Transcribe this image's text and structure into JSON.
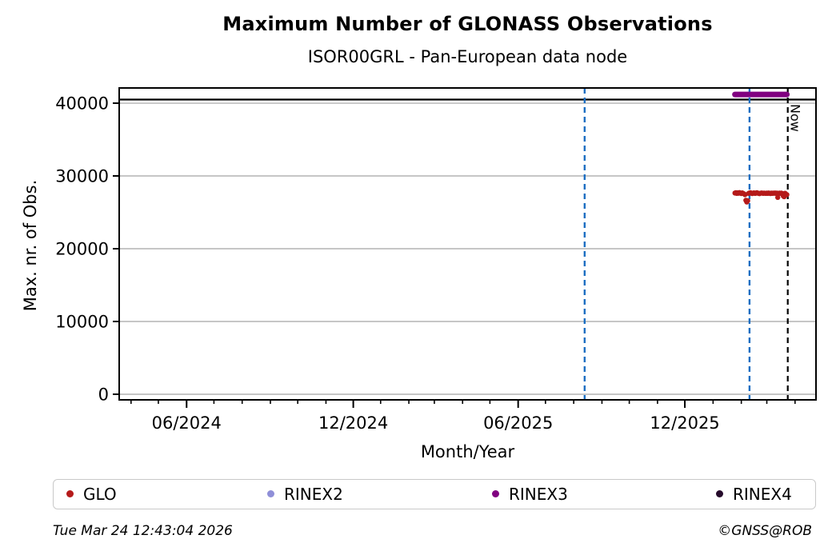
{
  "header": {
    "title": "Maximum Number of GLONASS Observations",
    "subtitle": "ISOR00GRL - Pan-European data node"
  },
  "footer": {
    "timestamp": "Tue Mar 24 12:43:04 2026",
    "credit": "©GNSS@ROB"
  },
  "chart_data": {
    "type": "scatter",
    "title": "Maximum Number of GLONASS Observations",
    "subtitle": "ISOR00GRL - Pan-European data node",
    "xlabel": "Month/Year",
    "ylabel": "Max. nr. of Obs.",
    "x_range": [
      "2024-03-19",
      "2026-04-24"
    ],
    "y_range": [
      -770,
      42090
    ],
    "y_ticks": [
      0,
      10000,
      20000,
      30000,
      40000
    ],
    "y_tick_labels": [
      "0",
      "10000",
      "20000",
      "30000",
      "40000"
    ],
    "x_major_ticks": [
      {
        "date": "2024-06-01",
        "label": "06/2024"
      },
      {
        "date": "2024-12-01",
        "label": "12/2024"
      },
      {
        "date": "2025-06-01",
        "label": "06/2025"
      },
      {
        "date": "2025-12-01",
        "label": "12/2025"
      }
    ],
    "x_minor_ticks_monthly": {
      "start": "2024-04-01",
      "end": "2026-04-01"
    },
    "grid": "horizontal-only",
    "grid_color": "#b4b4b4",
    "reference_line": {
      "value": 40500,
      "color": "#000000",
      "style": "solid"
    },
    "event_lines": [
      {
        "date": "2025-08-13",
        "color": "#1b6ec2",
        "style": "dashed"
      },
      {
        "date": "2026-02-10",
        "color": "#1b6ec2",
        "style": "dashed"
      }
    ],
    "now_marker": {
      "date": "2026-03-24",
      "label": "Now",
      "color": "#000000",
      "style": "dashed"
    },
    "legend_position": "bottom",
    "series": [
      {
        "name": "GLO",
        "color": "#b51a1a",
        "marker": "dot",
        "points": [
          [
            "2026-01-25",
            27650
          ],
          [
            "2026-01-26",
            27700
          ],
          [
            "2026-01-27",
            27600
          ],
          [
            "2026-01-28",
            27690
          ],
          [
            "2026-01-29",
            27620
          ],
          [
            "2026-01-30",
            27710
          ],
          [
            "2026-01-31",
            27640
          ],
          [
            "2026-02-01",
            27580
          ],
          [
            "2026-02-02",
            27670
          ],
          [
            "2026-02-03",
            27600
          ],
          [
            "2026-02-04",
            27540
          ],
          [
            "2026-02-05",
            27430
          ],
          [
            "2026-02-06",
            26650
          ],
          [
            "2026-02-07",
            26420
          ],
          [
            "2026-02-08",
            26600
          ],
          [
            "2026-02-09",
            27600
          ],
          [
            "2026-02-10",
            27660
          ],
          [
            "2026-02-11",
            27700
          ],
          [
            "2026-02-12",
            27620
          ],
          [
            "2026-02-13",
            27580
          ],
          [
            "2026-02-14",
            27650
          ],
          [
            "2026-02-15",
            27670
          ],
          [
            "2026-02-16",
            27600
          ],
          [
            "2026-02-17",
            27630
          ],
          [
            "2026-02-18",
            27700
          ],
          [
            "2026-02-19",
            27650
          ],
          [
            "2026-02-20",
            27600
          ],
          [
            "2026-02-21",
            27570
          ],
          [
            "2026-02-22",
            27620
          ],
          [
            "2026-02-23",
            27660
          ],
          [
            "2026-02-24",
            27640
          ],
          [
            "2026-02-25",
            27600
          ],
          [
            "2026-02-26",
            27650
          ],
          [
            "2026-02-27",
            27620
          ],
          [
            "2026-02-28",
            27600
          ],
          [
            "2026-03-01",
            27640
          ],
          [
            "2026-03-02",
            27600
          ],
          [
            "2026-03-03",
            27660
          ],
          [
            "2026-03-04",
            27620
          ],
          [
            "2026-03-05",
            27580
          ],
          [
            "2026-03-06",
            27640
          ],
          [
            "2026-03-07",
            27600
          ],
          [
            "2026-03-08",
            27650
          ],
          [
            "2026-03-09",
            27620
          ],
          [
            "2026-03-10",
            27660
          ],
          [
            "2026-03-11",
            27600
          ],
          [
            "2026-03-12",
            27640
          ],
          [
            "2026-03-13",
            27050
          ],
          [
            "2026-03-14",
            27620
          ],
          [
            "2026-03-15",
            27650
          ],
          [
            "2026-03-16",
            27600
          ],
          [
            "2026-03-17",
            27640
          ],
          [
            "2026-03-18",
            27580
          ],
          [
            "2026-03-19",
            27250
          ],
          [
            "2026-03-20",
            27150
          ],
          [
            "2026-03-21",
            27620
          ],
          [
            "2026-03-22",
            27500
          ],
          [
            "2026-03-23",
            27430
          ]
        ]
      },
      {
        "name": "RINEX2",
        "color": "#8f8fd8",
        "marker": "dot",
        "points": []
      },
      {
        "name": "RINEX3",
        "color": "#800080",
        "marker": "dot",
        "segment": {
          "start": "2026-01-25",
          "end": "2026-03-23",
          "value": 41200
        }
      },
      {
        "name": "RINEX4",
        "color": "#260a2b",
        "marker": "dot",
        "points": []
      }
    ]
  }
}
